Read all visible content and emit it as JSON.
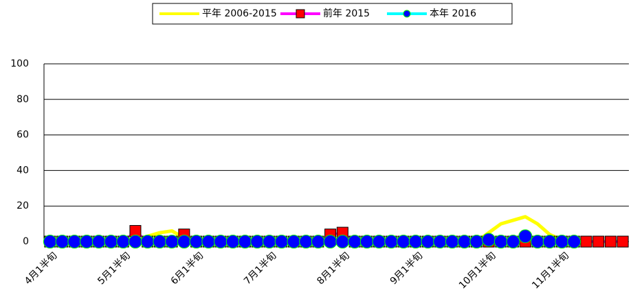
{
  "chart_data": {
    "type": "line",
    "categories": [
      "4月1半旬",
      null,
      null,
      null,
      null,
      null,
      "5月1半旬",
      null,
      null,
      null,
      null,
      null,
      "6月1半旬",
      null,
      null,
      null,
      null,
      null,
      "7月1半旬",
      null,
      null,
      null,
      null,
      null,
      "8月1半旬",
      null,
      null,
      null,
      null,
      null,
      "9月1半旬",
      null,
      null,
      null,
      null,
      null,
      "10月1半旬",
      null,
      null,
      null,
      null,
      null,
      "11月1半旬",
      null,
      null,
      null,
      null,
      null
    ],
    "series": [
      {
        "name": "平年 2006-2015",
        "color": "#ffff00",
        "marker": "none",
        "values": [
          0,
          0,
          0,
          0,
          0,
          0,
          0,
          1,
          3,
          5,
          6,
          2,
          0,
          0,
          0,
          0,
          0,
          0,
          0,
          0,
          0,
          0,
          0,
          0,
          0,
          0,
          0,
          0,
          0,
          0,
          0,
          0,
          0,
          0,
          0,
          0,
          5,
          10,
          12,
          14,
          10,
          4,
          1,
          0,
          0,
          0,
          0,
          0
        ]
      },
      {
        "name": "前年 2015",
        "color": "#ff00ff",
        "marker": "square",
        "marker_color": "#ff0000",
        "values": [
          0,
          0,
          0,
          0,
          0,
          0,
          0,
          6,
          0,
          0,
          0,
          4,
          0,
          0,
          0,
          0,
          0,
          0,
          0,
          0,
          0,
          0,
          0,
          4,
          5,
          0,
          0,
          0,
          0,
          0,
          0,
          0,
          0,
          0,
          0,
          0,
          0,
          0,
          0,
          0,
          0,
          0,
          0,
          0,
          0,
          0,
          0,
          0
        ]
      },
      {
        "name": "本年 2016",
        "color": "#00ffff",
        "marker": "circle",
        "marker_color": "#0000ff",
        "values": [
          0,
          0,
          0,
          0,
          0,
          0,
          0,
          0,
          0,
          0,
          0,
          0,
          0,
          0,
          0,
          0,
          0,
          0,
          0,
          0,
          0,
          0,
          0,
          0,
          0,
          0,
          0,
          0,
          0,
          0,
          0,
          0,
          0,
          0,
          0,
          0,
          1,
          0,
          0,
          3,
          0,
          0,
          0,
          0,
          null,
          null,
          null,
          null
        ]
      }
    ],
    "ylim": [
      0,
      100
    ],
    "yticks": [
      0,
      20,
      40,
      60,
      80,
      100
    ],
    "grid": true,
    "legend": "top"
  }
}
